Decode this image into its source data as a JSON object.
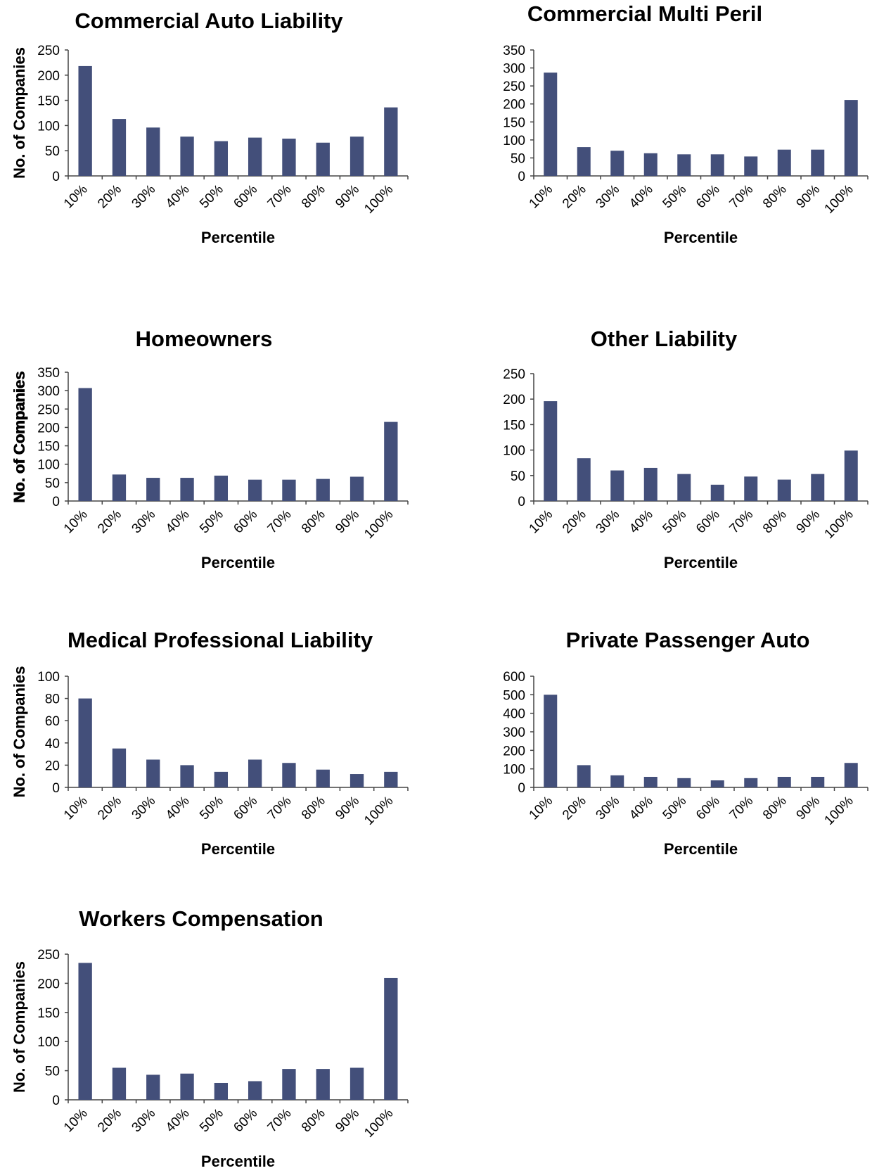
{
  "chart_data": [
    {
      "type": "bar",
      "title": "Commercial Auto Liability",
      "xlabel": "Percentile",
      "ylabel": "No. of Companies",
      "categories": [
        "10%",
        "20%",
        "30%",
        "40%",
        "50%",
        "60%",
        "70%",
        "80%",
        "90%",
        "100%"
      ],
      "values": [
        218,
        113,
        96,
        78,
        69,
        76,
        74,
        66,
        78,
        136
      ],
      "ylim": [
        0,
        250
      ],
      "yticks": [
        0,
        50,
        100,
        150,
        200,
        250
      ],
      "bar_color": "#434f7a",
      "grid": false,
      "legend": false
    },
    {
      "type": "bar",
      "title": "Commercial Multi Peril",
      "xlabel": "Percentile",
      "ylabel": "No. of Companies",
      "categories": [
        "10%",
        "20%",
        "30%",
        "40%",
        "50%",
        "60%",
        "70%",
        "80%",
        "90%",
        "100%"
      ],
      "values": [
        287,
        80,
        70,
        63,
        60,
        60,
        54,
        73,
        73,
        211
      ],
      "ylim": [
        0,
        350
      ],
      "yticks": [
        0,
        50,
        100,
        150,
        200,
        250,
        300,
        350
      ],
      "bar_color": "#434f7a",
      "grid": false,
      "legend": false
    },
    {
      "type": "bar",
      "title": "Homeowners",
      "xlabel": "Percentile",
      "ylabel": "No. of Companies",
      "categories": [
        "10%",
        "20%",
        "30%",
        "40%",
        "50%",
        "60%",
        "70%",
        "80%",
        "90%",
        "100%"
      ],
      "values": [
        307,
        72,
        63,
        63,
        69,
        58,
        58,
        60,
        66,
        215
      ],
      "ylim": [
        0,
        350
      ],
      "yticks": [
        0,
        50,
        100,
        150,
        200,
        250,
        300,
        350
      ],
      "bar_color": "#434f7a",
      "grid": false,
      "legend": false
    },
    {
      "type": "bar",
      "title": "Other Liability",
      "xlabel": "Percentile",
      "ylabel": "No. of Companies",
      "categories": [
        "10%",
        "20%",
        "30%",
        "40%",
        "50%",
        "60%",
        "70%",
        "80%",
        "90%",
        "100%"
      ],
      "values": [
        196,
        84,
        60,
        65,
        53,
        32,
        48,
        42,
        53,
        99
      ],
      "ylim": [
        0,
        250
      ],
      "yticks": [
        0,
        50,
        100,
        150,
        200,
        250
      ],
      "bar_color": "#434f7a",
      "grid": false,
      "legend": false
    },
    {
      "type": "bar",
      "title": "Medical Professional  Liability",
      "xlabel": "Percentile",
      "ylabel": "No. of Companies",
      "categories": [
        "10%",
        "20%",
        "30%",
        "40%",
        "50%",
        "60%",
        "70%",
        "80%",
        "90%",
        "100%"
      ],
      "values": [
        80,
        35,
        25,
        20,
        14,
        25,
        22,
        16,
        12,
        14
      ],
      "ylim": [
        0,
        100
      ],
      "yticks": [
        0,
        20,
        40,
        60,
        80,
        100
      ],
      "bar_color": "#434f7a",
      "grid": false,
      "legend": false
    },
    {
      "type": "bar",
      "title": "Private Passenger  Auto",
      "xlabel": "Percentile",
      "ylabel": "No. of Companies",
      "categories": [
        "10%",
        "20%",
        "30%",
        "40%",
        "50%",
        "60%",
        "70%",
        "80%",
        "90%",
        "100%"
      ],
      "values": [
        500,
        120,
        65,
        57,
        50,
        38,
        50,
        57,
        57,
        132
      ],
      "ylim": [
        0,
        600
      ],
      "yticks": [
        0,
        100,
        200,
        300,
        400,
        500,
        600
      ],
      "bar_color": "#434f7a",
      "grid": false,
      "legend": false
    },
    {
      "type": "bar",
      "title": "Workers Compensation",
      "xlabel": "Percentile",
      "ylabel": "No. of Companies",
      "categories": [
        "10%",
        "20%",
        "30%",
        "40%",
        "50%",
        "60%",
        "70%",
        "80%",
        "90%",
        "100%"
      ],
      "values": [
        235,
        55,
        43,
        45,
        29,
        32,
        53,
        53,
        55,
        209
      ],
      "ylim": [
        0,
        250
      ],
      "yticks": [
        0,
        50,
        100,
        150,
        200,
        250
      ],
      "bar_color": "#434f7a",
      "grid": false,
      "legend": false
    }
  ]
}
